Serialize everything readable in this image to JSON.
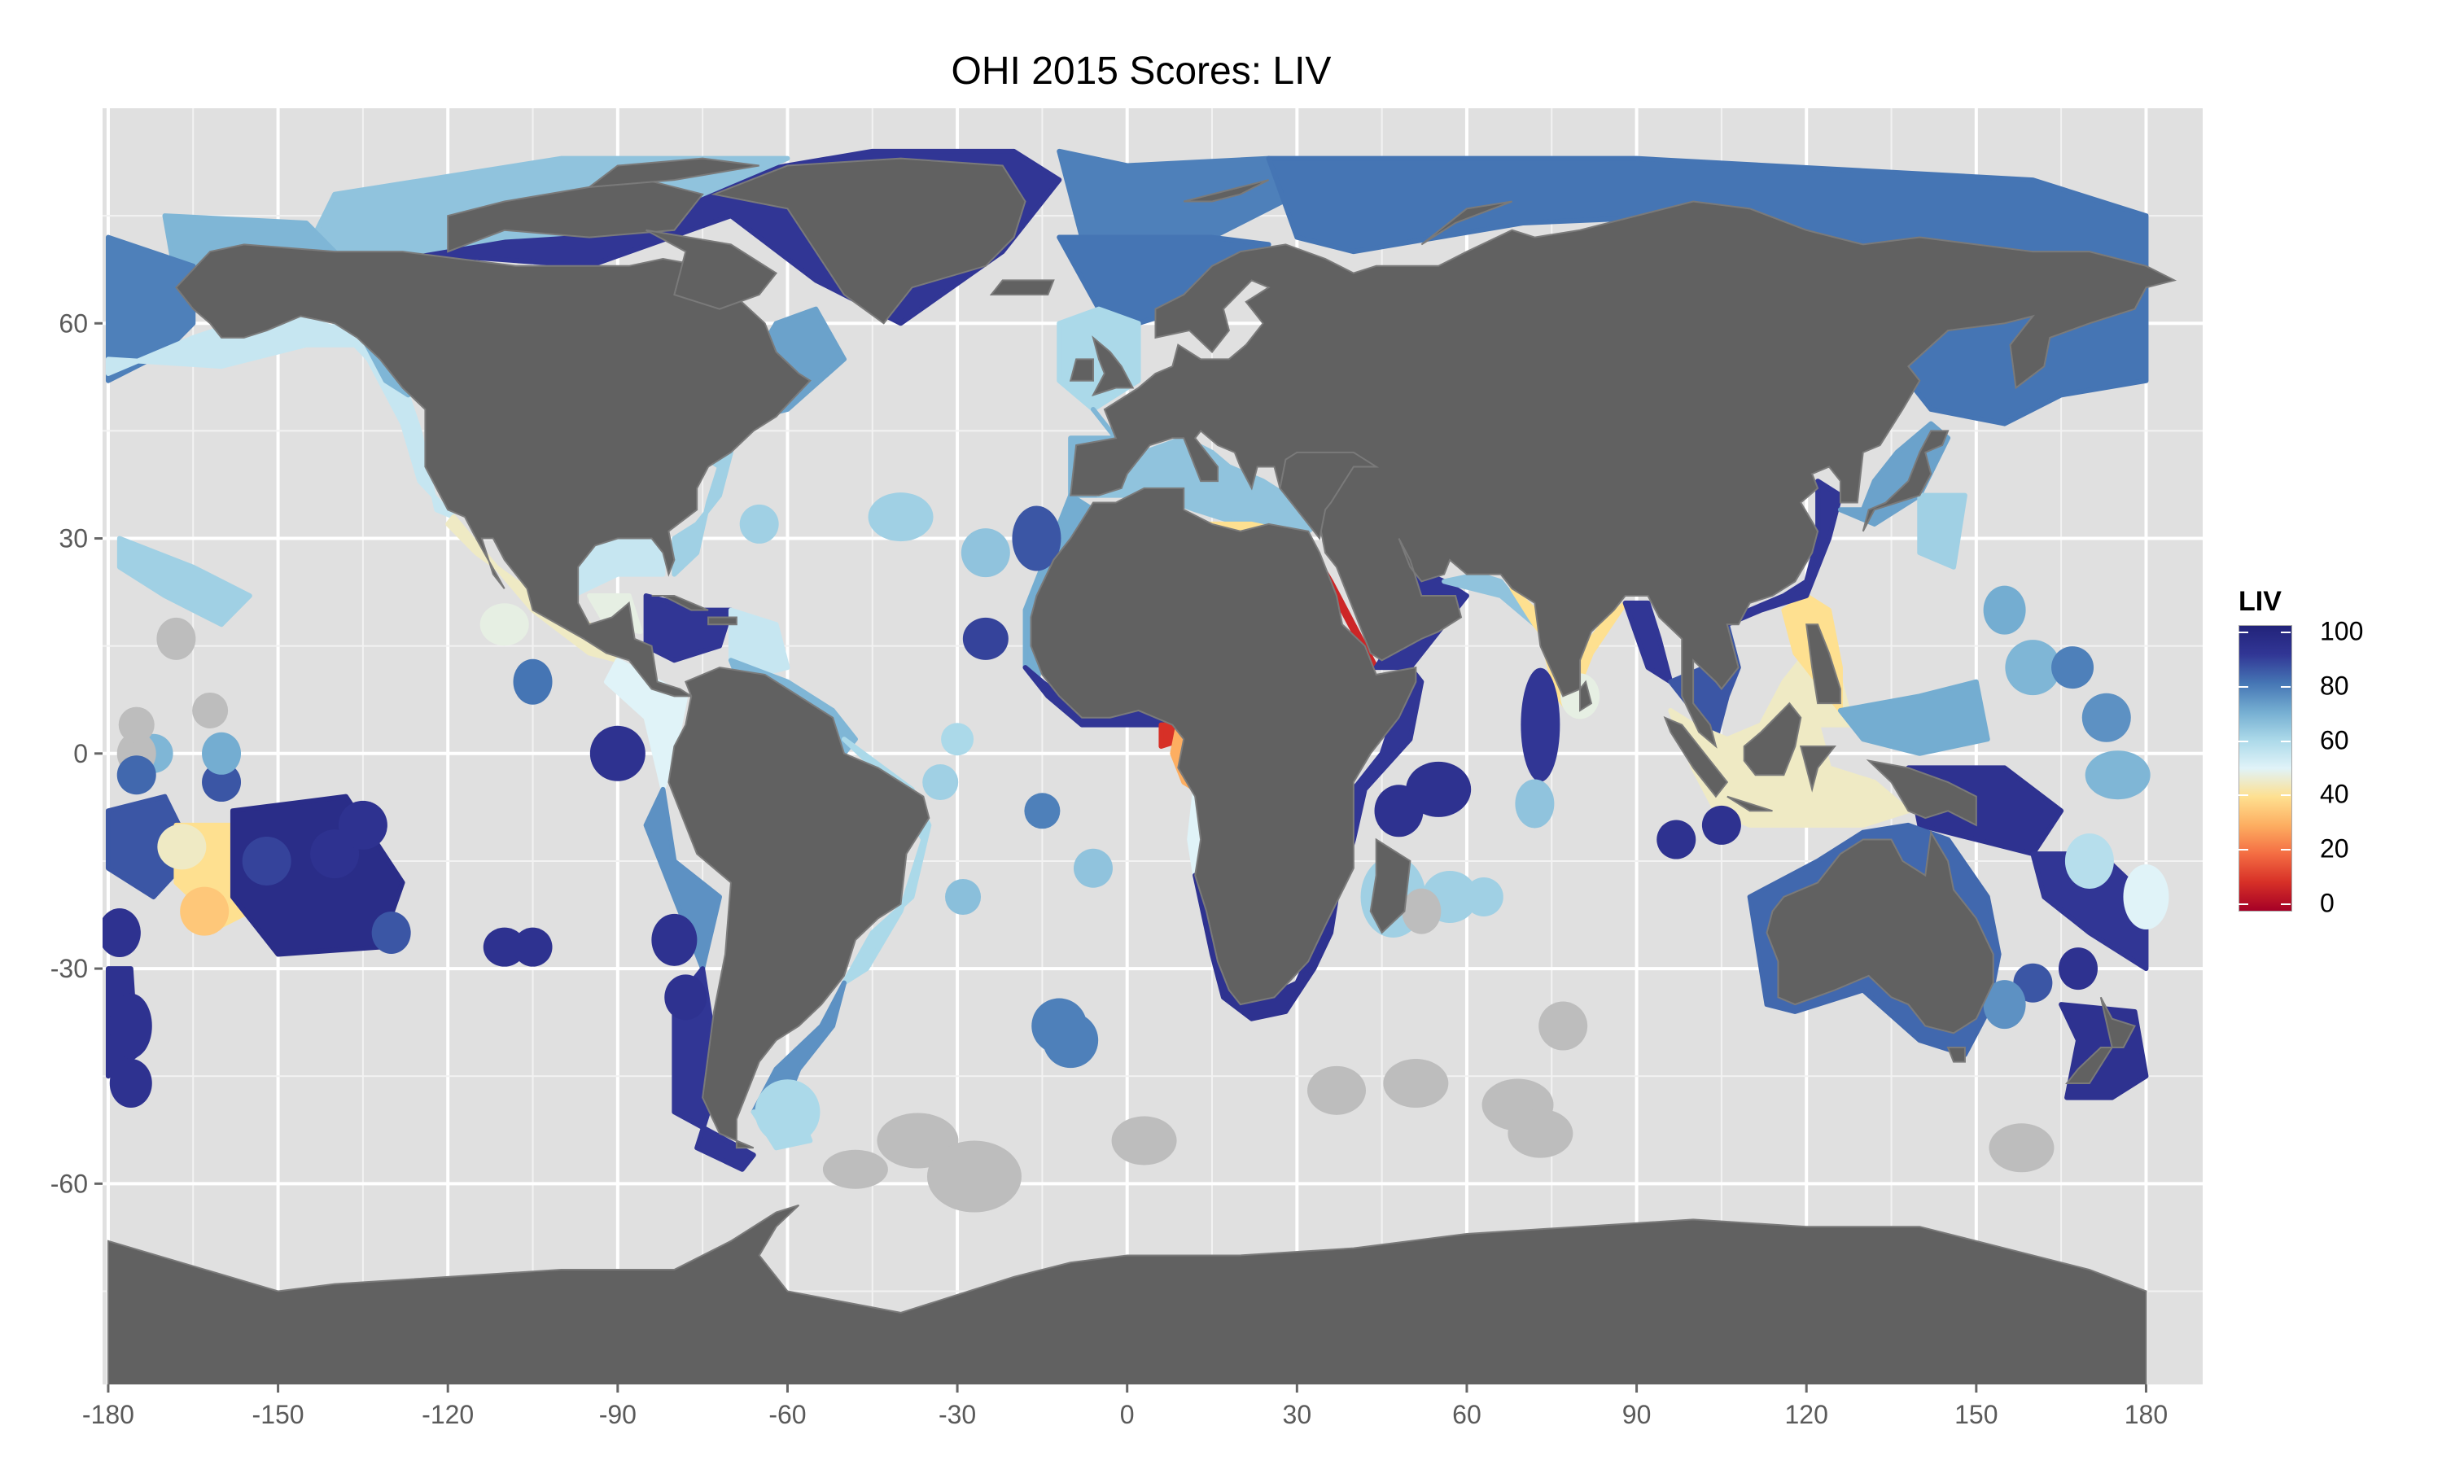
{
  "title": "OHI 2015 Scores: LIV",
  "legend": {
    "title": "LIV",
    "ticks": [
      "100",
      "80",
      "60",
      "40",
      "20",
      "0"
    ],
    "scale": [
      "#a50026",
      "#d73027",
      "#f46d43",
      "#fdae61",
      "#fee090",
      "#e0f3f8",
      "#abd9e9",
      "#74add1",
      "#4575b4",
      "#313695",
      "#22237a"
    ]
  },
  "chart_data": {
    "type": "map",
    "title": "OHI 2015 Scores: LIV",
    "x_ticks": [
      -180,
      -150,
      -120,
      -90,
      -60,
      -30,
      0,
      30,
      60,
      90,
      120,
      150,
      180
    ],
    "y_ticks": [
      60,
      30,
      0,
      -30,
      -60
    ],
    "xlim": [
      -181,
      190
    ],
    "ylim": [
      -88,
      90
    ],
    "colorbar": {
      "label": "LIV",
      "range": [
        0,
        100
      ],
      "ticks": [
        0,
        20,
        40,
        60,
        80,
        100
      ]
    },
    "colors": {
      "land": "#616161",
      "panel": "#e0e0e0",
      "na": "#bdbdbd"
    }
  }
}
